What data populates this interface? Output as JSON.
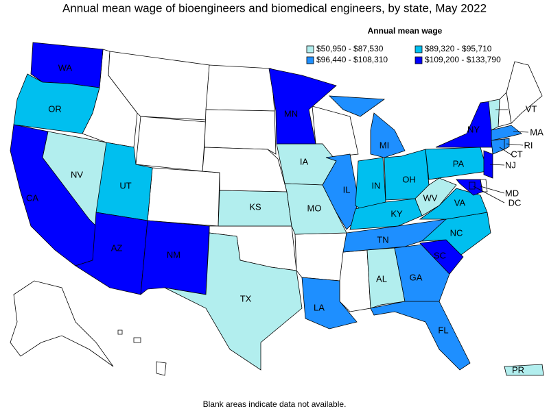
{
  "title": "Annual mean wage of bioengineers and biomedical engineers, by state, May 2022",
  "legend": {
    "title": "Annual mean wage",
    "classes": [
      {
        "label": "$50,950 - $87,530",
        "color": "#b2eeee"
      },
      {
        "label": "$89,320 - $95,710",
        "color": "#00bfef"
      },
      {
        "label": "$96,440 - $108,310",
        "color": "#1e8fff"
      },
      {
        "label": "$109,200 - $133,790",
        "color": "#0000ff"
      }
    ]
  },
  "states": [
    {
      "abbr": "WA",
      "class": 3
    },
    {
      "abbr": "OR",
      "class": 1
    },
    {
      "abbr": "CA",
      "class": 3
    },
    {
      "abbr": "NV",
      "class": 0
    },
    {
      "abbr": "UT",
      "class": 1
    },
    {
      "abbr": "AZ",
      "class": 3
    },
    {
      "abbr": "NM",
      "class": 3
    },
    {
      "abbr": "TX",
      "class": 0
    },
    {
      "abbr": "KS",
      "class": 0
    },
    {
      "abbr": "IA",
      "class": 0
    },
    {
      "abbr": "MO",
      "class": 0
    },
    {
      "abbr": "MN",
      "class": 3
    },
    {
      "abbr": "IL",
      "class": 2
    },
    {
      "abbr": "IN",
      "class": 1
    },
    {
      "abbr": "OH",
      "class": 1
    },
    {
      "abbr": "MI",
      "class": 2
    },
    {
      "abbr": "KY",
      "class": 1
    },
    {
      "abbr": "TN",
      "class": 2
    },
    {
      "abbr": "AL",
      "class": 0
    },
    {
      "abbr": "GA",
      "class": 2
    },
    {
      "abbr": "FL",
      "class": 2
    },
    {
      "abbr": "SC",
      "class": 3
    },
    {
      "abbr": "NC",
      "class": 1
    },
    {
      "abbr": "VA",
      "class": 1
    },
    {
      "abbr": "WV",
      "class": 0
    },
    {
      "abbr": "PA",
      "class": 1
    },
    {
      "abbr": "NY",
      "class": 3
    },
    {
      "abbr": "VT",
      "class": 0
    },
    {
      "abbr": "MA",
      "class": 2
    },
    {
      "abbr": "CT",
      "class": 2
    },
    {
      "abbr": "RI",
      "class": 2
    },
    {
      "abbr": "NJ",
      "class": 3
    },
    {
      "abbr": "MD",
      "class": 3
    },
    {
      "abbr": "DC",
      "class": 3
    },
    {
      "abbr": "LA",
      "class": 2
    },
    {
      "abbr": "PR",
      "class": 0
    }
  ],
  "footnote": "Blank areas indicate data not available."
}
